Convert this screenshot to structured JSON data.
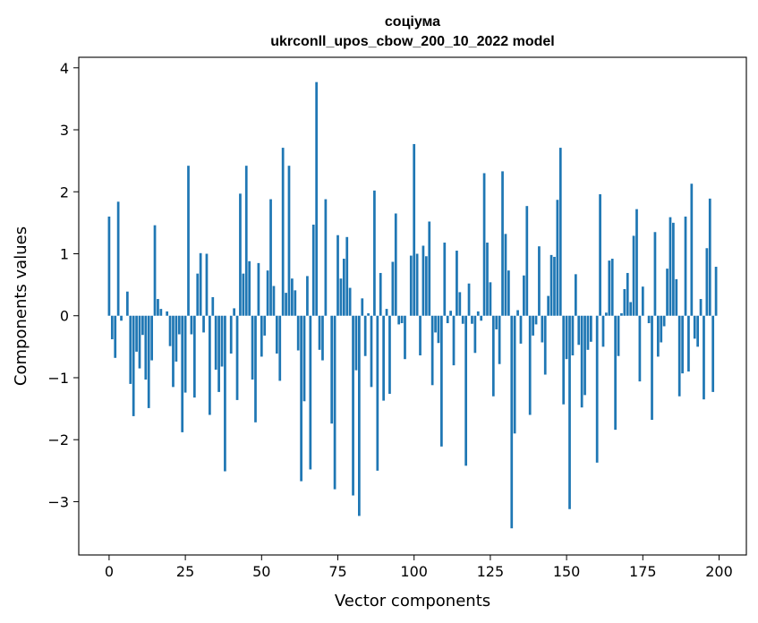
{
  "chart_data": {
    "type": "bar",
    "title": "соціума",
    "subtitle": "ukrconll_upos_cbow_200_10_2022 model",
    "xlabel": "Vector components",
    "ylabel": "Components values",
    "xlim": [
      -9.95,
      208.95
    ],
    "ylim": [
      -3.86,
      4.17
    ],
    "xticks": [
      0,
      25,
      50,
      75,
      100,
      125,
      150,
      175,
      200
    ],
    "xtick_labels": [
      "0",
      "25",
      "50",
      "75",
      "100",
      "125",
      "150",
      "175",
      "200"
    ],
    "yticks": [
      -3,
      -2,
      -1,
      0,
      1,
      2,
      3,
      4
    ],
    "ytick_labels": [
      "−3",
      "−2",
      "−1",
      "0",
      "1",
      "2",
      "3",
      "4"
    ],
    "bar_color": "#1f77b4",
    "grid": false,
    "legend": "none",
    "x": [
      0,
      1,
      2,
      3,
      4,
      5,
      6,
      7,
      8,
      9,
      10,
      11,
      12,
      13,
      14,
      15,
      16,
      17,
      18,
      19,
      20,
      21,
      22,
      23,
      24,
      25,
      26,
      27,
      28,
      29,
      30,
      31,
      32,
      33,
      34,
      35,
      36,
      37,
      38,
      39,
      40,
      41,
      42,
      43,
      44,
      45,
      46,
      47,
      48,
      49,
      50,
      51,
      52,
      53,
      54,
      55,
      56,
      57,
      58,
      59,
      60,
      61,
      62,
      63,
      64,
      65,
      66,
      67,
      68,
      69,
      70,
      71,
      72,
      73,
      74,
      75,
      76,
      77,
      78,
      79,
      80,
      81,
      82,
      83,
      84,
      85,
      86,
      87,
      88,
      89,
      90,
      91,
      92,
      93,
      94,
      95,
      96,
      97,
      98,
      99,
      100,
      101,
      102,
      103,
      104,
      105,
      106,
      107,
      108,
      109,
      110,
      111,
      112,
      113,
      114,
      115,
      116,
      117,
      118,
      119,
      120,
      121,
      122,
      123,
      124,
      125,
      126,
      127,
      128,
      129,
      130,
      131,
      132,
      133,
      134,
      135,
      136,
      137,
      138,
      139,
      140,
      141,
      142,
      143,
      144,
      145,
      146,
      147,
      148,
      149,
      150,
      151,
      152,
      153,
      154,
      155,
      156,
      157,
      158,
      159,
      160,
      161,
      162,
      163,
      164,
      165,
      166,
      167,
      168,
      169,
      170,
      171,
      172,
      173,
      174,
      175,
      176,
      177,
      178,
      179,
      180,
      181,
      182,
      183,
      184,
      185,
      186,
      187,
      188,
      189,
      190,
      191,
      192,
      193,
      194,
      195,
      196,
      197,
      198,
      199
    ],
    "values": [
      1.6,
      -0.38,
      -0.68,
      1.84,
      -0.08,
      0.0,
      0.39,
      -1.1,
      -1.62,
      -0.58,
      -0.85,
      -0.31,
      -1.03,
      -1.49,
      -0.72,
      1.46,
      0.27,
      0.11,
      0.0,
      0.07,
      -0.49,
      -1.15,
      -0.74,
      -0.3,
      -1.88,
      -1.24,
      2.42,
      -0.3,
      -1.32,
      0.68,
      1.01,
      -0.27,
      1.0,
      -1.6,
      0.3,
      -0.87,
      -1.23,
      -0.82,
      -2.51,
      0.0,
      -0.61,
      0.12,
      -1.36,
      1.97,
      0.68,
      2.42,
      0.88,
      -1.03,
      -1.72,
      0.85,
      -0.66,
      -0.32,
      0.73,
      1.88,
      0.48,
      -0.61,
      -1.05,
      2.71,
      0.37,
      2.42,
      0.6,
      0.41,
      -0.56,
      -2.67,
      -1.38,
      0.64,
      -2.48,
      1.47,
      3.77,
      -0.55,
      -0.72,
      1.88,
      0.0,
      -1.74,
      -2.8,
      1.3,
      0.6,
      0.92,
      1.27,
      0.45,
      -2.9,
      -0.88,
      -3.23,
      0.28,
      -0.65,
      0.04,
      -1.15,
      2.02,
      -2.5,
      0.69,
      -1.37,
      0.11,
      -1.26,
      0.87,
      1.65,
      -0.14,
      -0.12,
      -0.7,
      0.0,
      0.97,
      2.77,
      1.0,
      -0.64,
      1.13,
      0.96,
      1.52,
      -1.12,
      -0.27,
      -0.44,
      -2.11,
      1.18,
      -0.12,
      0.08,
      -0.8,
      1.05,
      0.38,
      -0.13,
      -2.42,
      0.52,
      -0.13,
      -0.6,
      0.07,
      -0.08,
      2.3,
      1.18,
      0.54,
      -1.3,
      -0.22,
      -0.78,
      2.33,
      1.32,
      0.73,
      -3.43,
      -1.9,
      0.09,
      -0.45,
      0.65,
      1.77,
      -1.6,
      -0.32,
      -0.14,
      1.12,
      -0.43,
      -0.95,
      0.32,
      0.98,
      0.95,
      1.87,
      2.71,
      -1.43,
      -0.7,
      -3.12,
      -0.64,
      0.67,
      -0.47,
      -1.48,
      -1.28,
      -0.55,
      -0.42,
      0.0,
      -2.37,
      1.96,
      -0.5,
      0.05,
      0.89,
      0.92,
      -1.84,
      -0.65,
      0.04,
      0.43,
      0.69,
      0.22,
      1.29,
      1.72,
      -1.06,
      0.47,
      0.0,
      -0.12,
      -1.68,
      1.35,
      -0.66,
      -0.43,
      -0.17,
      0.76,
      1.59,
      1.5,
      0.59,
      -1.3,
      -0.93,
      1.6,
      -0.9,
      2.13,
      -0.37,
      -0.5,
      0.27,
      -1.35,
      1.09,
      1.89,
      -1.23,
      0.79
    ]
  }
}
